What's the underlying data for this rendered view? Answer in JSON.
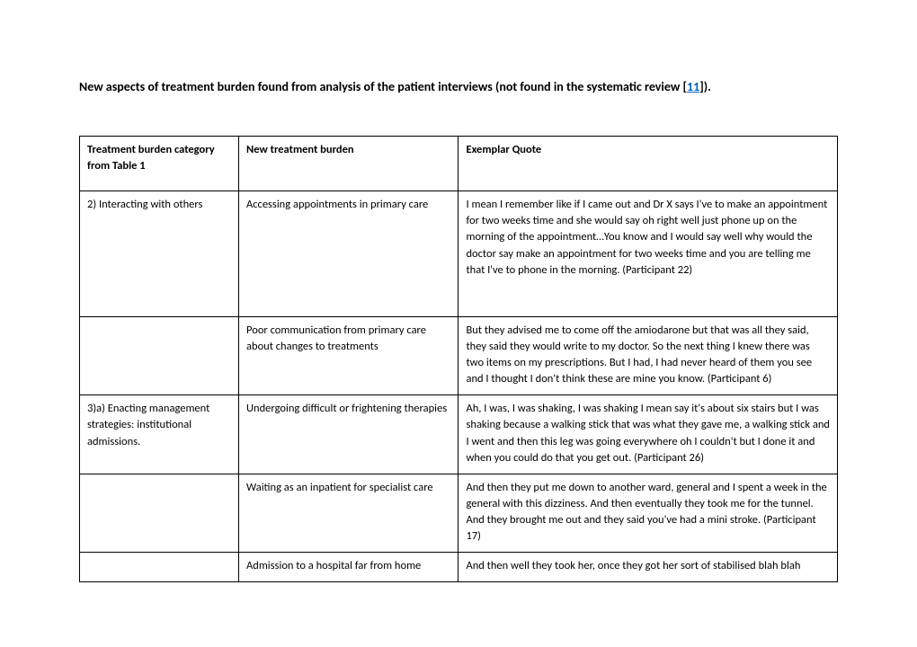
{
  "title_pre": "New aspects of treatment burden found from analysis of the patient interviews (not found in the systematic review [",
  "title_link": "11",
  "title_post": "]).",
  "columns": [
    "Treatment burden category from Table 1",
    "New treatment burden",
    "Exemplar Quote"
  ],
  "rows": [
    {
      "c1": "2) Interacting with others",
      "c2": "Accessing appointments in primary care",
      "c3": "I mean I remember like if I came out and Dr X says I've to make an appointment for two weeks time and she would say oh right well just phone up on the morning of the appointment…You know and I would say well why would the doctor say make an appointment for two weeks time and you are telling me that I've to phone in the morning. (Participant 22)",
      "tall": true
    },
    {
      "c1": "",
      "c2": "Poor communication from primary care about changes to treatments",
      "c3": "But they advised me to come off the amiodarone but that was all they said, they said they would write to my doctor. So the next thing I knew there was two items on my prescriptions. But I had, I had never heard of them you see and I thought I don't think these are mine you know. (Participant 6)",
      "tall": false
    },
    {
      "c1": "3)a) Enacting management strategies: institutional admissions.",
      "c2": "Undergoing difficult or frightening therapies",
      "c3": "Ah, I was, I was shaking, I was shaking I mean say it's about six stairs but I was shaking because a walking stick that was what they gave me, a walking stick and I went and then this leg was going everywhere oh I couldn't but I done it and when you could do that you get out. (Participant 26)",
      "tall": false
    },
    {
      "c1": "",
      "c2": "Waiting as an inpatient for specialist care",
      "c3": "And then they put me down to another ward, general and I spent a week in the general with this dizziness. And then eventually they took me for the tunnel. And they brought me out and they said you've had a mini stroke. (Participant 17)",
      "tall": false
    },
    {
      "c1": "",
      "c2": "Admission to a hospital far from home",
      "c3": "And then well they took her, once they got her sort of stabilised blah blah",
      "tall": false
    }
  ]
}
